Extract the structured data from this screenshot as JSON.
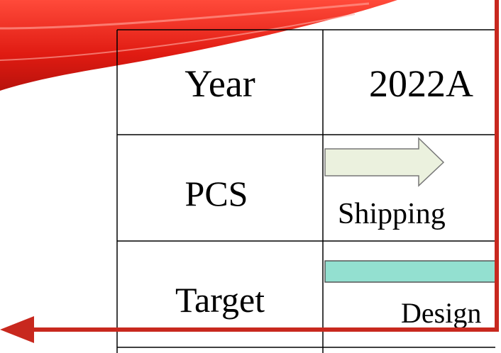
{
  "table": {
    "rows": [
      [
        "Year",
        "2022A"
      ],
      [
        "PCS",
        "Shipping"
      ],
      [
        "Target",
        "Design"
      ]
    ]
  }
}
